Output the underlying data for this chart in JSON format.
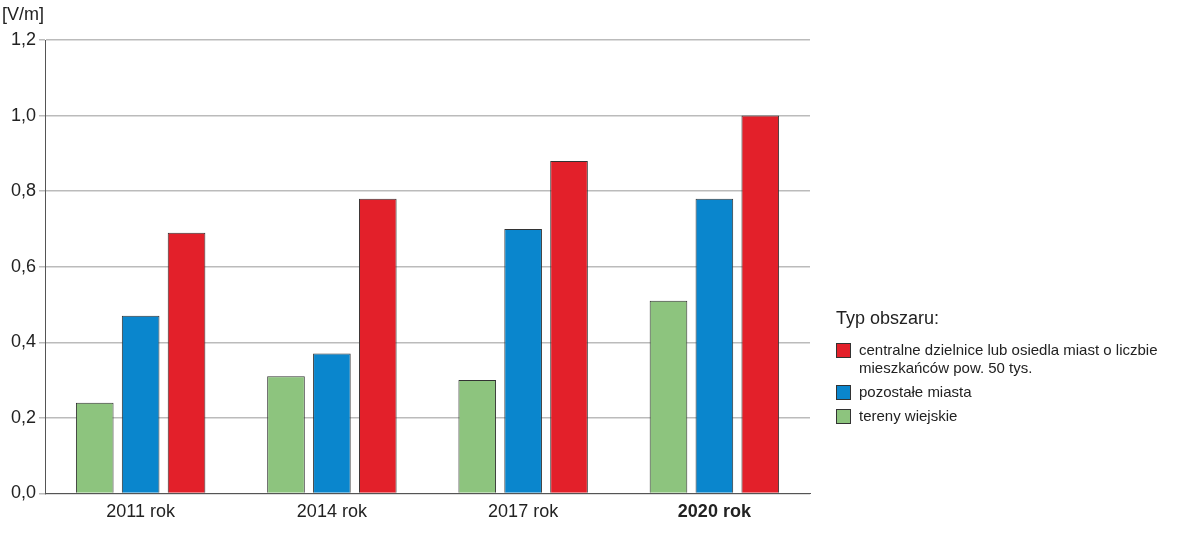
{
  "chart_data": {
    "type": "bar",
    "ylabel": "[V/m]",
    "legend_title": "Typ obszaru:",
    "categories": [
      "2011 rok",
      "2014 rok",
      "2017 rok",
      "2020 rok"
    ],
    "series": [
      {
        "name": "tereny wiejskie",
        "color": "#8dc47e",
        "values": [
          0.24,
          0.31,
          0.3,
          0.51
        ]
      },
      {
        "name": "pozostałe miasta",
        "color": "#0a86cd",
        "values": [
          0.47,
          0.37,
          0.7,
          0.78
        ]
      },
      {
        "name": "centralne dzielnice lub osiedla miast o liczbie mieszkańców pow. 50 tys.",
        "color": "#e3202a",
        "values": [
          0.69,
          0.78,
          0.88,
          1.0
        ]
      }
    ],
    "ylim": [
      0,
      1.2
    ],
    "yticks": [
      {
        "value": 0,
        "label": "0,0"
      },
      {
        "value": 0.2,
        "label": "0,2"
      },
      {
        "value": 0.4,
        "label": "0,4"
      },
      {
        "value": 0.6,
        "label": "0,6"
      },
      {
        "value": 0.8,
        "label": "0,8"
      },
      {
        "value": 1,
        "label": "1,0"
      },
      {
        "value": 1.2,
        "label": "1,2"
      }
    ],
    "grid": "y",
    "legend": "right"
  }
}
